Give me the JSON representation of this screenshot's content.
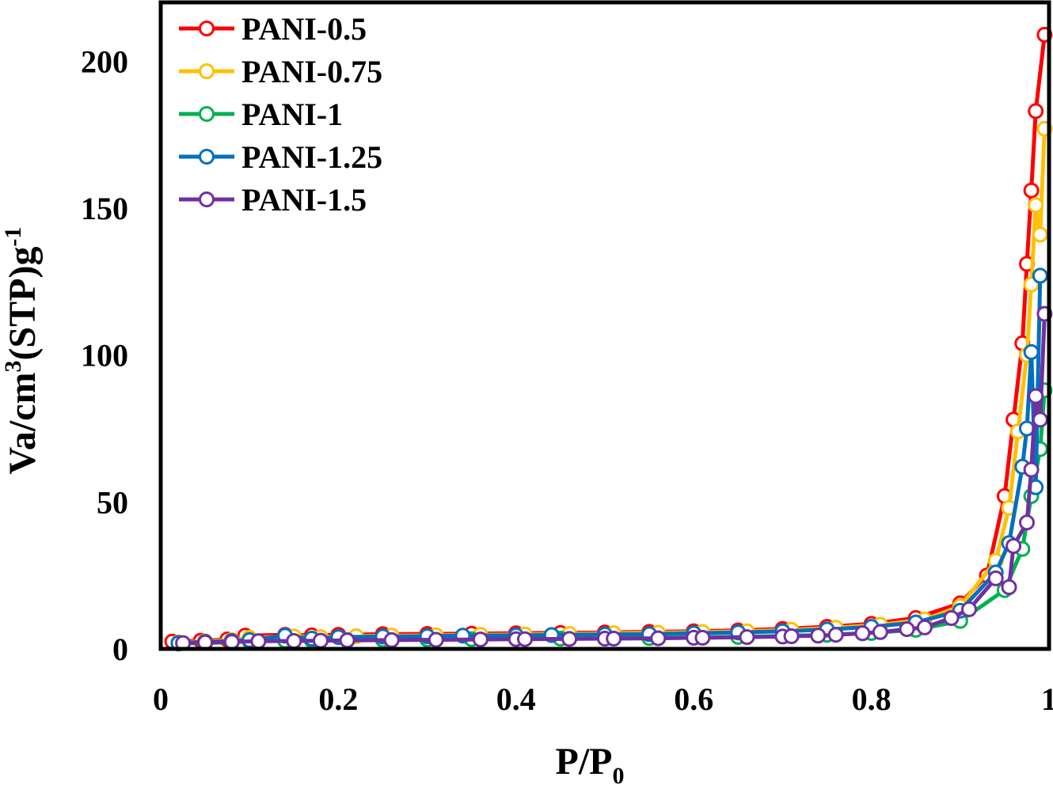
{
  "chart_data": {
    "type": "line",
    "title": "",
    "xlabel": "P/P",
    "xlabel_sub": "0",
    "ylabel": "Va/cm",
    "ylabel_sup1": "3",
    "ylabel_mid": "(STP)g",
    "ylabel_sup2": "-1",
    "xlim": [
      0,
      1
    ],
    "ylim": [
      0,
      200
    ],
    "x_ticks": [
      0,
      0.2,
      0.4,
      0.6,
      0.8,
      1
    ],
    "x_tick_labels": [
      "0",
      "0.2",
      "0.4",
      "0.6",
      "0.8",
      "1"
    ],
    "y_ticks": [
      0,
      50,
      100,
      150,
      200
    ],
    "y_tick_labels": [
      "0",
      "50",
      "100",
      "150",
      "200"
    ],
    "grid": false,
    "legend_position": "top-left",
    "series": [
      {
        "name": "PANI-0.5",
        "color": "#ff0000",
        "x": [
          0.013,
          0.045,
          0.075,
          0.095,
          0.14,
          0.17,
          0.2,
          0.25,
          0.3,
          0.35,
          0.4,
          0.45,
          0.5,
          0.55,
          0.6,
          0.65,
          0.7,
          0.75,
          0.8,
          0.85,
          0.9,
          0.93,
          0.95,
          0.96,
          0.97,
          0.975,
          0.98,
          0.985,
          0.995
        ],
        "y": [
          2.5,
          2.8,
          3.2,
          4.5,
          4.8,
          4.6,
          4.8,
          5.0,
          5.1,
          5.2,
          5.3,
          5.4,
          5.6,
          5.8,
          6.0,
          6.3,
          6.8,
          7.5,
          8.5,
          10.5,
          15.5,
          25,
          52,
          78,
          104,
          131,
          156,
          183,
          209
        ]
      },
      {
        "name": "PANI-0.75",
        "color": "#ffc000",
        "x": [
          0.02,
          0.05,
          0.08,
          0.1,
          0.15,
          0.18,
          0.22,
          0.26,
          0.31,
          0.36,
          0.41,
          0.46,
          0.51,
          0.56,
          0.61,
          0.66,
          0.71,
          0.76,
          0.81,
          0.86,
          0.9,
          0.94,
          0.955,
          0.965,
          0.975,
          0.98,
          0.985,
          0.99,
          0.995
        ],
        "y": [
          2.2,
          2.6,
          3.0,
          3.8,
          4.2,
          4.0,
          4.3,
          4.5,
          4.6,
          4.8,
          4.9,
          5.1,
          5.3,
          5.5,
          5.7,
          6.0,
          6.5,
          7.2,
          8.2,
          10.0,
          14.5,
          30,
          48,
          74,
          100,
          124,
          151,
          141,
          177
        ]
      },
      {
        "name": "PANI-1",
        "color": "#00b050",
        "x": [
          0.02,
          0.05,
          0.08,
          0.1,
          0.14,
          0.17,
          0.21,
          0.25,
          0.3,
          0.35,
          0.4,
          0.45,
          0.5,
          0.55,
          0.6,
          0.65,
          0.7,
          0.75,
          0.8,
          0.85,
          0.9,
          0.95,
          0.97,
          0.98,
          0.99,
          0.995
        ],
        "y": [
          1.8,
          2.0,
          2.3,
          2.6,
          2.8,
          2.9,
          3.0,
          3.1,
          3.2,
          3.3,
          3.4,
          3.5,
          3.6,
          3.7,
          3.9,
          4.1,
          4.4,
          4.8,
          5.4,
          6.5,
          9.5,
          20,
          34,
          52,
          68,
          88
        ]
      },
      {
        "name": "PANI-1.25",
        "color": "#0070c0",
        "x": [
          0.02,
          0.05,
          0.08,
          0.1,
          0.14,
          0.17,
          0.2,
          0.25,
          0.3,
          0.34,
          0.4,
          0.44,
          0.5,
          0.55,
          0.6,
          0.65,
          0.7,
          0.75,
          0.8,
          0.85,
          0.9,
          0.94,
          0.955,
          0.97,
          0.975,
          0.98,
          0.985,
          0.99
        ],
        "y": [
          2.0,
          2.4,
          2.7,
          3.0,
          4.5,
          3.5,
          4.0,
          4.2,
          4.3,
          4.5,
          4.6,
          4.7,
          4.9,
          5.0,
          5.3,
          5.6,
          6.0,
          6.6,
          7.5,
          9.0,
          13,
          26,
          36,
          62,
          75,
          101,
          55,
          127
        ]
      },
      {
        "name": "PANI-1.5",
        "color": "#7030a0",
        "x": [
          0.025,
          0.05,
          0.08,
          0.11,
          0.15,
          0.18,
          0.21,
          0.26,
          0.31,
          0.36,
          0.4,
          0.41,
          0.46,
          0.5,
          0.51,
          0.56,
          0.6,
          0.61,
          0.66,
          0.7,
          0.71,
          0.74,
          0.76,
          0.79,
          0.81,
          0.84,
          0.86,
          0.89,
          0.91,
          0.94,
          0.955,
          0.96,
          0.975,
          0.98,
          0.985,
          0.99,
          0.995
        ],
        "y": [
          2.0,
          2.2,
          2.4,
          2.6,
          2.7,
          2.8,
          2.9,
          3.0,
          3.1,
          3.2,
          3.3,
          3.3,
          3.4,
          3.5,
          3.5,
          3.6,
          3.8,
          3.8,
          4.0,
          4.2,
          4.3,
          4.5,
          4.8,
          5.3,
          5.7,
          6.7,
          7.3,
          10.5,
          13.5,
          24,
          21,
          35,
          43,
          61,
          86,
          78,
          114
        ]
      }
    ]
  }
}
